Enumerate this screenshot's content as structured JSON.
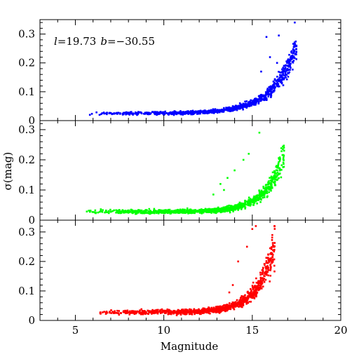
{
  "chart_data": {
    "type": "scatter",
    "xlabel": "Magnitude",
    "ylabel": "σ(mag)",
    "annotation": {
      "l_symbol": "l",
      "l_value": "=19.73",
      "b_symbol": "b",
      "b_value": "=−30.55"
    },
    "xlim": [
      3,
      20
    ],
    "x_ticks": [
      5,
      10,
      15,
      20
    ],
    "grid": false,
    "panels": [
      {
        "name": "top",
        "color": "#0000ff",
        "ylim": [
          0,
          0.35
        ],
        "y_ticks": [
          0,
          0.1,
          0.2,
          0.3
        ],
        "y_tick_labels": [
          "0",
          "0.1",
          "0.2",
          "0.3"
        ],
        "model": {
          "floor": 0.025,
          "amp": 0.2,
          "x0": 17.3,
          "scale": 1.35,
          "xmin": 5.8,
          "xmax": 17.5,
          "n": 950,
          "spread": 0.18,
          "seed": 11,
          "yclip": 0.28
        },
        "outliers": [
          {
            "x": 15.8,
            "y": 0.29
          },
          {
            "x": 16.5,
            "y": 0.295
          },
          {
            "x": 17.4,
            "y": 0.34
          },
          {
            "x": 16.0,
            "y": 0.22
          },
          {
            "x": 16.4,
            "y": 0.2
          },
          {
            "x": 15.5,
            "y": 0.17
          },
          {
            "x": 14.3,
            "y": 0.06
          },
          {
            "x": 13.9,
            "y": 0.05
          }
        ]
      },
      {
        "name": "middle",
        "color": "#00ff00",
        "ylim": [
          0,
          0.33
        ],
        "y_ticks": [
          0,
          0.1,
          0.2,
          0.3
        ],
        "y_tick_labels": [
          "0",
          "0.1",
          "0.2",
          "0.3"
        ],
        "model": {
          "floor": 0.028,
          "amp": 0.12,
          "x0": 16.3,
          "scale": 1.05,
          "xmin": 5.6,
          "xmax": 16.8,
          "n": 1000,
          "spread": 0.22,
          "seed": 23,
          "yclip": 0.325
        },
        "outliers": [
          {
            "x": 13.6,
            "y": 0.14
          },
          {
            "x": 14.0,
            "y": 0.165
          },
          {
            "x": 13.4,
            "y": 0.1
          },
          {
            "x": 14.5,
            "y": 0.2
          },
          {
            "x": 15.4,
            "y": 0.29
          },
          {
            "x": 14.8,
            "y": 0.22
          },
          {
            "x": 12.8,
            "y": 0.085
          },
          {
            "x": 13.2,
            "y": 0.12
          }
        ]
      },
      {
        "name": "bottom",
        "color": "#ff0000",
        "ylim": [
          0,
          0.34
        ],
        "y_ticks": [
          0,
          0.1,
          0.2,
          0.3
        ],
        "y_tick_labels": [
          "0",
          "0.1",
          "0.2",
          "0.3"
        ],
        "model": {
          "floor": 0.028,
          "amp": 0.16,
          "x0": 15.9,
          "scale": 1.0,
          "xmin": 6.0,
          "xmax": 16.3,
          "n": 1000,
          "spread": 0.25,
          "seed": 37,
          "yclip": 0.335
        },
        "outliers": [
          {
            "x": 15.0,
            "y": 0.31
          },
          {
            "x": 15.2,
            "y": 0.32
          },
          {
            "x": 14.2,
            "y": 0.2
          },
          {
            "x": 13.9,
            "y": 0.12
          },
          {
            "x": 13.7,
            "y": 0.095
          },
          {
            "x": 14.7,
            "y": 0.25
          }
        ]
      }
    ]
  }
}
